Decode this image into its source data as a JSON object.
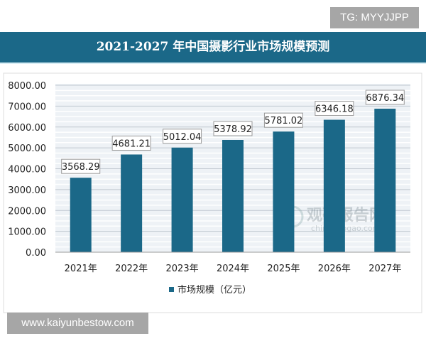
{
  "watermark_top": "TG: MYYJJPP",
  "watermark_bottom": "www.kaiyunbestow.com",
  "logo": {
    "name": "观研报告网",
    "domain": "chinabaogao.com"
  },
  "chart_data": {
    "type": "bar",
    "title": "2021-2027 年中国摄影行业市场规模预测",
    "categories": [
      "2021年",
      "2022年",
      "2023年",
      "2024年",
      "2025年",
      "2026年",
      "2027年"
    ],
    "series": [
      {
        "name": "市场规模（亿元）",
        "values": [
          3568.29,
          4681.21,
          5012.04,
          5378.92,
          5781.02,
          6346.18,
          6876.34
        ]
      }
    ],
    "data_labels": [
      "3568.29",
      "4681.21",
      "5012.04",
      "5378.92",
      "5781.02",
      "6346.18",
      "6876.34"
    ],
    "yticks": [
      "0.00",
      "1000.00",
      "2000.00",
      "3000.00",
      "4000.00",
      "5000.00",
      "6000.00",
      "7000.00",
      "8000.00"
    ],
    "ylim": [
      0,
      8000
    ],
    "grid": true,
    "legend": "bottom",
    "colors": {
      "bar": "#1b6888",
      "banner": "#1b6888"
    }
  }
}
